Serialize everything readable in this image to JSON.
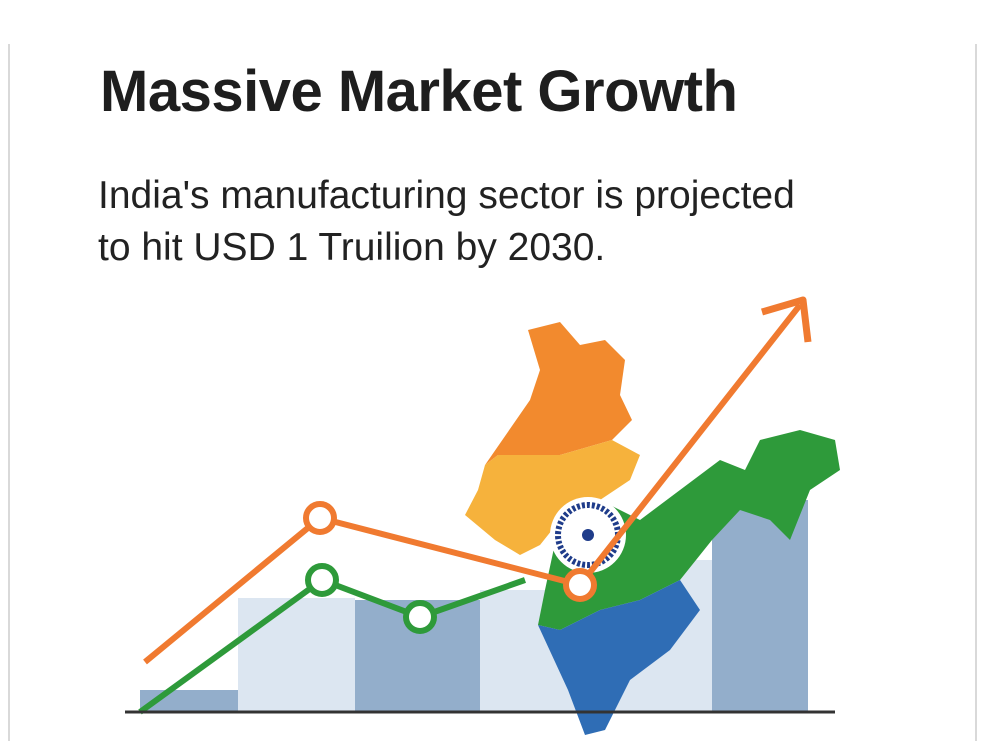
{
  "header": {
    "title": "Massive Market Growth"
  },
  "subtitle": {
    "lines": [
      "India's manufacturing sector is projected",
      "to hit USD 1 Truilion by 2030."
    ]
  }
}
